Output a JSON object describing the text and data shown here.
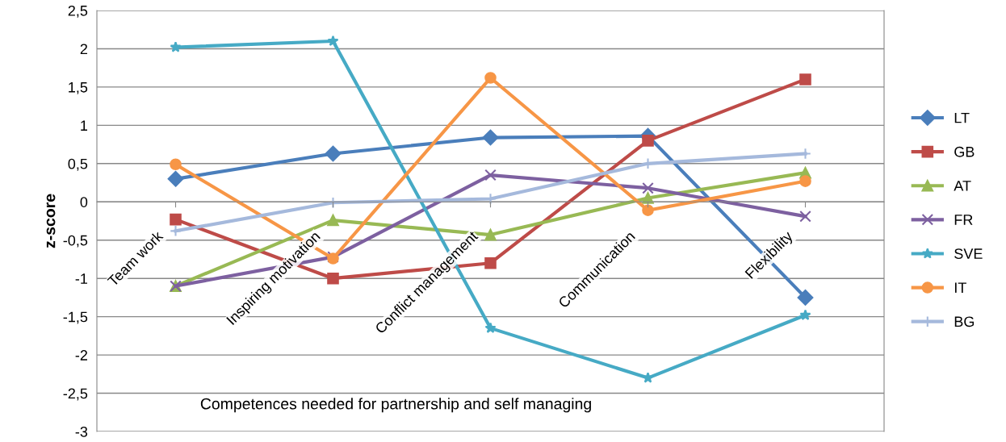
{
  "chart_data": {
    "type": "line",
    "xlabel": "Competences needed for partnership and self managing",
    "ylabel": "z-score",
    "categories": [
      "Team work",
      "Inspiring motivation",
      "Conflict management",
      "Communication",
      "Flexibility"
    ],
    "series": [
      {
        "name": "LT",
        "color": "#4a7ebb",
        "marker": "diamond",
        "values": [
          0.3,
          0.63,
          0.84,
          0.86,
          -1.25
        ]
      },
      {
        "name": "GB",
        "color": "#be4b48",
        "marker": "square",
        "values": [
          -0.23,
          -1.0,
          -0.8,
          0.8,
          1.6
        ]
      },
      {
        "name": "AT",
        "color": "#98b954",
        "marker": "triangle",
        "values": [
          -1.1,
          -0.24,
          -0.43,
          0.05,
          0.38
        ]
      },
      {
        "name": "FR",
        "color": "#7d60a0",
        "marker": "cross",
        "values": [
          -1.1,
          -0.72,
          0.35,
          0.18,
          -0.19
        ]
      },
      {
        "name": "SVE",
        "color": "#46aac5",
        "marker": "star",
        "values": [
          2.02,
          2.1,
          -1.65,
          -2.3,
          -1.48
        ]
      },
      {
        "name": "IT",
        "color": "#f79646",
        "marker": "circle",
        "values": [
          0.49,
          -0.74,
          1.62,
          -0.11,
          0.27
        ]
      },
      {
        "name": "BG",
        "color": "#a5b9dc",
        "marker": "plus",
        "values": [
          -0.38,
          -0.01,
          0.04,
          0.5,
          0.63
        ]
      }
    ],
    "ylim": [
      -3,
      2.5
    ],
    "yticks": [
      {
        "value": -3,
        "label": "-3"
      },
      {
        "value": -2.5,
        "label": "-2,5"
      },
      {
        "value": -2,
        "label": "-2"
      },
      {
        "value": -1.5,
        "label": "-1,5"
      },
      {
        "value": -1,
        "label": "-1"
      },
      {
        "value": -0.5,
        "label": "-0,5"
      },
      {
        "value": 0,
        "label": "0"
      },
      {
        "value": 0.5,
        "label": "0,5"
      },
      {
        "value": 1,
        "label": "1"
      },
      {
        "value": 1.5,
        "label": "1,5"
      },
      {
        "value": 2,
        "label": "2"
      },
      {
        "value": 2.5,
        "label": "2,5"
      }
    ],
    "grid": "y",
    "legend": "right",
    "line_style": "solid"
  }
}
